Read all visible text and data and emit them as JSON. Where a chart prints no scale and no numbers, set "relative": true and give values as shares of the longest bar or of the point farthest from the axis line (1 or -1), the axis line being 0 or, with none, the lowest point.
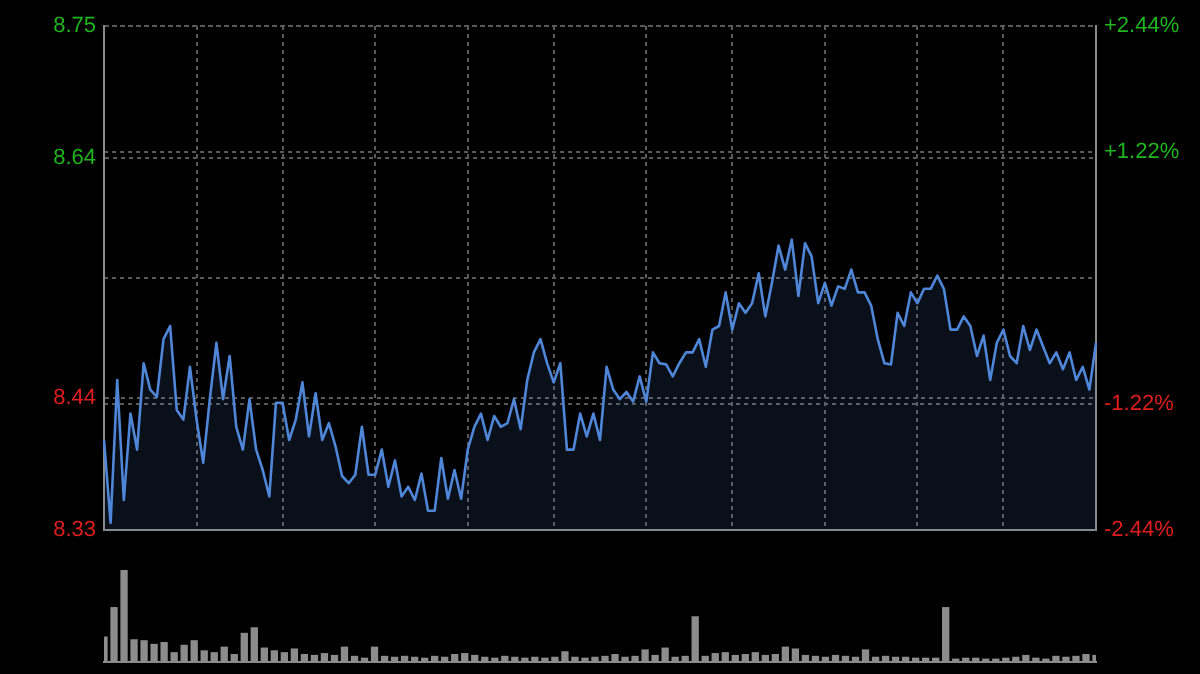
{
  "chart_data": [
    {
      "type": "area",
      "categories": [
        null,
        null,
        null,
        null,
        null,
        null,
        null,
        null,
        null,
        null,
        null,
        null,
        null,
        null,
        null,
        null,
        null,
        null,
        null,
        null,
        null,
        null,
        null,
        null,
        null,
        null,
        null,
        null,
        null,
        null,
        null,
        null,
        null,
        null,
        null,
        null,
        null,
        null,
        null,
        null,
        null,
        null,
        null,
        null,
        null,
        null,
        null,
        null,
        null,
        null,
        null,
        null,
        null,
        null,
        null,
        null,
        null,
        null,
        null,
        null,
        null,
        null,
        null,
        null,
        null,
        null,
        null,
        null,
        null,
        null,
        null,
        null,
        null,
        null,
        null,
        null,
        null,
        null,
        null,
        null,
        null,
        null,
        null,
        null,
        null,
        null,
        null,
        null,
        null,
        null,
        null,
        null,
        null,
        null,
        null,
        null,
        null,
        null,
        null,
        null,
        null,
        null,
        null,
        null,
        null,
        null,
        null,
        null,
        null,
        null,
        null,
        null,
        null,
        null,
        null,
        null,
        null,
        null,
        null,
        null,
        null,
        null,
        null,
        null,
        null,
        null,
        null,
        null,
        null,
        null,
        null,
        null,
        null,
        null,
        null,
        null,
        null,
        null,
        null,
        null,
        null,
        null,
        null,
        null,
        null,
        null,
        null,
        null,
        null,
        null,
        null
      ],
      "series": [
        {
          "color": "#4f86d8",
          "values": [
            8.405,
            8.336,
            8.455,
            8.355,
            8.427,
            8.397,
            8.469,
            8.447,
            8.441,
            8.489,
            8.5,
            8.43,
            8.422,
            8.466,
            8.422,
            8.386,
            8.439,
            8.486,
            8.439,
            8.475,
            8.416,
            8.397,
            8.439,
            8.397,
            8.38,
            8.358,
            8.436,
            8.436,
            8.405,
            8.422,
            8.453,
            8.408,
            8.444,
            8.405,
            8.419,
            8.4,
            8.375,
            8.369,
            8.376,
            8.416,
            8.376,
            8.376,
            8.397,
            8.366,
            8.388,
            8.358,
            8.366,
            8.355,
            8.377,
            8.346,
            8.346,
            8.39,
            8.356,
            8.38,
            8.356,
            8.397,
            8.416,
            8.427,
            8.405,
            8.425,
            8.416,
            8.419,
            8.439,
            8.414,
            8.455,
            8.478,
            8.489,
            8.469,
            8.453,
            8.469,
            8.397,
            8.397,
            8.427,
            8.408,
            8.427,
            8.405,
            8.466,
            8.447,
            8.439,
            8.445,
            8.437,
            8.458,
            8.437,
            8.478,
            8.469,
            8.468,
            8.458,
            8.469,
            8.478,
            8.478,
            8.489,
            8.466,
            8.497,
            8.5,
            8.528,
            8.497,
            8.519,
            8.511,
            8.519,
            8.544,
            8.508,
            8.536,
            8.567,
            8.547,
            8.572,
            8.525,
            8.569,
            8.558,
            8.519,
            8.536,
            8.517,
            8.533,
            8.531,
            8.547,
            8.528,
            8.528,
            8.517,
            8.489,
            8.469,
            8.468,
            8.511,
            8.5,
            8.528,
            8.519,
            8.531,
            8.531,
            8.542,
            8.531,
            8.497,
            8.497,
            8.508,
            8.5,
            8.475,
            8.492,
            8.455,
            8.486,
            8.497,
            8.475,
            8.469,
            8.5,
            8.48,
            8.497,
            8.483,
            8.469,
            8.478,
            8.464,
            8.478,
            8.455,
            8.466,
            8.447,
            8.486
          ]
        }
      ],
      "ylim": [
        8.33,
        8.75
      ],
      "yticks": [
        8.33,
        8.44,
        8.64,
        8.75
      ],
      "y2lim": [
        -2.44,
        2.44
      ],
      "y2ticks": [
        {
          "value": -2.44,
          "label": "-2.44%"
        },
        {
          "value": -1.22,
          "label": "-1.22%"
        },
        {
          "value": 0,
          "label": null
        },
        {
          "value": 1.22,
          "label": "+1.22%"
        },
        {
          "value": 2.44,
          "label": "+2.44%"
        }
      ],
      "grid": true,
      "tick_labels": "y",
      "legend": false
    },
    {
      "type": "bar",
      "relative": true,
      "color": "#8c8c8c",
      "categories": [
        null,
        null,
        null,
        null,
        null,
        null,
        null,
        null,
        null,
        null,
        null,
        null,
        null,
        null,
        null,
        null,
        null,
        null,
        null,
        null,
        null,
        null,
        null,
        null,
        null,
        null,
        null,
        null,
        null,
        null,
        null,
        null,
        null,
        null,
        null,
        null,
        null,
        null,
        null,
        null,
        null,
        null,
        null,
        null,
        null,
        null,
        null,
        null,
        null,
        null,
        null,
        null,
        null,
        null,
        null,
        null,
        null,
        null,
        null,
        null,
        null,
        null,
        null,
        null,
        null,
        null,
        null,
        null,
        null,
        null,
        null,
        null,
        null,
        null,
        null,
        null,
        null,
        null,
        null,
        null,
        null,
        null,
        null,
        null,
        null,
        null,
        null,
        null,
        null,
        null,
        null,
        null,
        null,
        null,
        null,
        null,
        null,
        null,
        null,
        null
      ],
      "values": [
        0.27,
        0.59,
        1,
        0.24,
        0.23,
        0.19,
        0.21,
        0.1,
        0.18,
        0.23,
        0.12,
        0.1,
        0.16,
        0.08,
        0.31,
        0.37,
        0.15,
        0.12,
        0.1,
        0.14,
        0.08,
        0.07,
        0.09,
        0.07,
        0.16,
        0.06,
        0.04,
        0.16,
        0.06,
        0.05,
        0.06,
        0.05,
        0.04,
        0.06,
        0.05,
        0.08,
        0.09,
        0.07,
        0.05,
        0.04,
        0.06,
        0.05,
        0.04,
        0.05,
        0.04,
        0.05,
        0.11,
        0.05,
        0.04,
        0.05,
        0.06,
        0.08,
        0.05,
        0.06,
        0.13,
        0.07,
        0.15,
        0.05,
        0.06,
        0.49,
        0.06,
        0.09,
        0.1,
        0.07,
        0.08,
        0.1,
        0.07,
        0.08,
        0.16,
        0.14,
        0.07,
        0.06,
        0.05,
        0.07,
        0.06,
        0.05,
        0.13,
        0.05,
        0.06,
        0.05,
        0.05,
        0.04,
        0.04,
        0.04,
        0.59,
        0.03,
        0.04,
        0.04,
        0.03,
        0.03,
        0.04,
        0.05,
        0.07,
        0.04,
        0.03,
        0.06,
        0.05,
        0.06,
        0.08,
        0.07
      ],
      "legend": false
    }
  ]
}
